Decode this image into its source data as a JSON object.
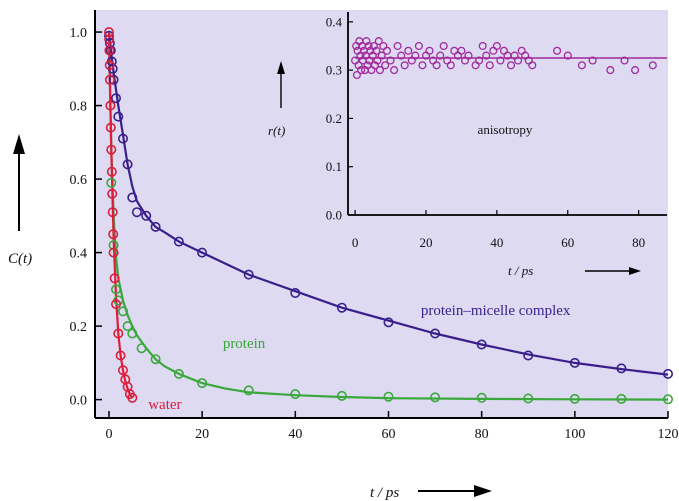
{
  "chart_data": [
    {
      "type": "scatter",
      "panel": "main",
      "xlabel": "t / ps",
      "ylabel": "C(t)",
      "xlim": [
        -3,
        120
      ],
      "ylim": [
        -0.05,
        1.06
      ],
      "xticks": [
        0,
        20,
        40,
        60,
        80,
        100,
        120
      ],
      "yticks": [
        0.0,
        0.2,
        0.4,
        0.6,
        0.8,
        1.0
      ],
      "x_tick_labels": [
        "0",
        "20",
        "40",
        "60",
        "80",
        "100",
        "120"
      ],
      "y_tick_labels": [
        "0.0",
        "0.2",
        "0.4",
        "0.6",
        "0.8",
        "1.0"
      ],
      "grid": false,
      "background": "#dddaf2",
      "series": [
        {
          "name": "protein–micelle complex",
          "color": "#3a1f8c",
          "x": [
            0,
            0.2,
            0.4,
            0.6,
            0.8,
            1,
            1.5,
            2,
            3,
            4,
            5,
            6,
            8,
            10,
            15,
            20,
            30,
            40,
            50,
            60,
            70,
            80,
            90,
            100,
            110,
            120
          ],
          "y": [
            0.99,
            0.97,
            0.95,
            0.92,
            0.9,
            0.87,
            0.82,
            0.77,
            0.71,
            0.64,
            0.55,
            0.51,
            0.5,
            0.47,
            0.43,
            0.4,
            0.34,
            0.29,
            0.25,
            0.21,
            0.18,
            0.15,
            0.12,
            0.1,
            0.085,
            0.07
          ],
          "fit_x": [
            0,
            0.5,
            1,
            2,
            3,
            4,
            5,
            6,
            8,
            10,
            12,
            15,
            20,
            25,
            30,
            40,
            50,
            60,
            70,
            80,
            90,
            100,
            110,
            120
          ],
          "fit_y": [
            1.0,
            0.94,
            0.89,
            0.8,
            0.72,
            0.64,
            0.58,
            0.54,
            0.5,
            0.47,
            0.455,
            0.43,
            0.4,
            0.37,
            0.34,
            0.295,
            0.25,
            0.215,
            0.18,
            0.15,
            0.123,
            0.1,
            0.083,
            0.068
          ]
        },
        {
          "name": "protein",
          "color": "#3aa83a",
          "x": [
            0.5,
            1,
            1.5,
            2,
            3,
            4,
            5,
            7,
            10,
            15,
            20,
            30,
            40,
            50,
            60,
            70,
            80,
            90,
            100,
            110,
            120
          ],
          "y": [
            0.59,
            0.42,
            0.3,
            0.27,
            0.24,
            0.2,
            0.18,
            0.14,
            0.11,
            0.07,
            0.045,
            0.025,
            0.015,
            0.01,
            0.008,
            0.006,
            0.005,
            0.003,
            0.002,
            0.002,
            0.001
          ],
          "fit_x": [
            0,
            0.5,
            1,
            1.5,
            2,
            3,
            4,
            5,
            6,
            8,
            10,
            12,
            15,
            20,
            25,
            30,
            40,
            50,
            60,
            80,
            100,
            120
          ],
          "fit_y": [
            1.0,
            0.68,
            0.5,
            0.39,
            0.33,
            0.27,
            0.23,
            0.2,
            0.175,
            0.14,
            0.11,
            0.09,
            0.07,
            0.045,
            0.03,
            0.02,
            0.012,
            0.007,
            0.004,
            0.002,
            0.001,
            0.0
          ]
        },
        {
          "name": "water",
          "color": "#dc1e3c",
          "x": [
            0,
            0.05,
            0.1,
            0.15,
            0.2,
            0.3,
            0.4,
            0.5,
            0.6,
            0.7,
            0.8,
            0.9,
            1.0,
            1.2,
            1.5,
            2,
            2.5,
            3,
            3.5,
            4,
            4.5,
            5
          ],
          "y": [
            1.0,
            0.98,
            0.95,
            0.91,
            0.87,
            0.8,
            0.74,
            0.68,
            0.62,
            0.56,
            0.51,
            0.45,
            0.4,
            0.33,
            0.26,
            0.18,
            0.12,
            0.08,
            0.055,
            0.035,
            0.015,
            0.005
          ],
          "fit_x": [
            0,
            0.25,
            0.5,
            0.75,
            1,
            1.5,
            2,
            2.5,
            3,
            3.5,
            4,
            4.5,
            5
          ],
          "fit_y": [
            1.0,
            0.83,
            0.68,
            0.55,
            0.44,
            0.28,
            0.18,
            0.12,
            0.08,
            0.05,
            0.03,
            0.015,
            0.005
          ]
        }
      ],
      "annotations": [
        {
          "text": "protein–micelle complex",
          "x": 83,
          "y": 0.23,
          "color": "#3a1f8c"
        },
        {
          "text": "protein",
          "x": 29,
          "y": 0.14,
          "color": "#3aa83a"
        },
        {
          "text": "water",
          "x": 12,
          "y": -0.025,
          "color": "#dc1e3c"
        }
      ]
    },
    {
      "type": "scatter",
      "panel": "inset",
      "title": "anisotropy",
      "xlabel": "t / ps",
      "ylabel": "r(t)",
      "xlim": [
        -2,
        88
      ],
      "ylim": [
        0,
        0.41
      ],
      "xticks": [
        0,
        20,
        40,
        60,
        80
      ],
      "yticks": [
        0.0,
        0.1,
        0.2,
        0.3,
        0.4
      ],
      "x_tick_labels": [
        "0",
        "20",
        "40",
        "60",
        "80"
      ],
      "y_tick_labels": [
        "0.0",
        "0.1",
        "0.2",
        "0.3",
        "0.4"
      ],
      "grid": false,
      "series": [
        {
          "name": "anisotropy",
          "color": "#a12a9c",
          "x": [
            0,
            0.3,
            0.5,
            0.7,
            1,
            1.2,
            1.5,
            1.7,
            2,
            2.2,
            2.5,
            2.8,
            3,
            3.2,
            3.5,
            3.8,
            4,
            4.3,
            4.6,
            5,
            5.3,
            5.6,
            6,
            6.3,
            6.7,
            7,
            7.5,
            8,
            8.5,
            9,
            10,
            11,
            12,
            13,
            14,
            15,
            16,
            17,
            18,
            19,
            20,
            21,
            22,
            23,
            24,
            25,
            26,
            27,
            28,
            29,
            30,
            31,
            32,
            34,
            35,
            36,
            37,
            38,
            39,
            40,
            41,
            42,
            43,
            44,
            45,
            46,
            47,
            48,
            49,
            50,
            57,
            60,
            64,
            67,
            72,
            76,
            79,
            84
          ],
          "y": [
            0.32,
            0.35,
            0.29,
            0.34,
            0.31,
            0.36,
            0.33,
            0.3,
            0.35,
            0.32,
            0.34,
            0.3,
            0.33,
            0.36,
            0.31,
            0.35,
            0.32,
            0.34,
            0.3,
            0.33,
            0.35,
            0.31,
            0.34,
            0.32,
            0.36,
            0.3,
            0.33,
            0.35,
            0.31,
            0.34,
            0.32,
            0.3,
            0.35,
            0.33,
            0.31,
            0.34,
            0.32,
            0.33,
            0.35,
            0.31,
            0.33,
            0.34,
            0.32,
            0.31,
            0.33,
            0.35,
            0.32,
            0.31,
            0.34,
            0.33,
            0.34,
            0.32,
            0.33,
            0.31,
            0.32,
            0.35,
            0.33,
            0.31,
            0.34,
            0.35,
            0.32,
            0.34,
            0.33,
            0.31,
            0.33,
            0.32,
            0.34,
            0.33,
            0.32,
            0.31,
            0.34,
            0.33,
            0.31,
            0.32,
            0.3,
            0.32,
            0.3,
            0.31
          ],
          "fit_x": [
            0,
            88
          ],
          "fit_y": [
            0.325,
            0.325
          ]
        }
      ]
    }
  ]
}
